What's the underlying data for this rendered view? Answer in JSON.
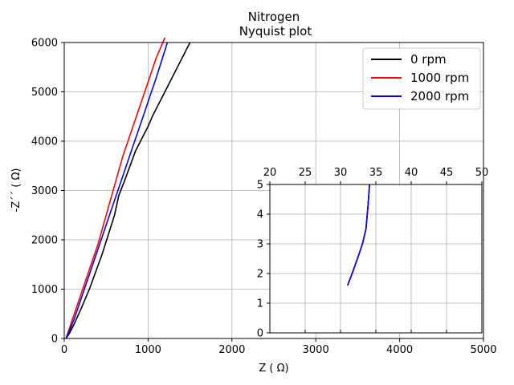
{
  "chart_data": [
    {
      "type": "line",
      "title": "Nitrogen",
      "subtitle": "Nyquist plot",
      "xlabel": "Z  ( Ω)",
      "ylabel": "-Z´´  ( Ω)",
      "xlim": [
        0,
        5000
      ],
      "ylim": [
        0,
        6000
      ],
      "xticks": [
        0,
        1000,
        2000,
        3000,
        4000,
        5000
      ],
      "yticks": [
        0,
        1000,
        2000,
        3000,
        4000,
        5000,
        6000
      ],
      "grid": true,
      "legend_position": "top-right",
      "series": [
        {
          "name": "0 rpm",
          "color": "#000000",
          "x": [
            20,
            60,
            120,
            200,
            300,
            450,
            600,
            650,
            720,
            850,
            1000,
            1050,
            1200,
            1350,
            1500
          ],
          "y": [
            0,
            100,
            300,
            600,
            1000,
            1700,
            2500,
            2900,
            3200,
            3800,
            4300,
            4500,
            5000,
            5500,
            6000
          ]
        },
        {
          "name": "1000 rpm",
          "color": "#ff0000",
          "x": [
            20,
            60,
            120,
            200,
            300,
            400,
            500,
            600,
            700,
            800,
            900,
            1000,
            1100,
            1200
          ],
          "y": [
            0,
            200,
            500,
            900,
            1400,
            1900,
            2500,
            3100,
            3700,
            4200,
            4700,
            5200,
            5700,
            6100
          ]
        },
        {
          "name": "2000 rpm",
          "color": "#0000ff",
          "x": [
            20,
            60,
            120,
            200,
            300,
            400,
            500,
            600,
            700,
            800,
            900,
            1000,
            1100,
            1230
          ],
          "y": [
            0,
            150,
            400,
            800,
            1300,
            1800,
            2300,
            2800,
            3300,
            3800,
            4300,
            4800,
            5300,
            6000
          ]
        }
      ]
    },
    {
      "type": "line",
      "inset": true,
      "xlim": [
        20,
        50
      ],
      "ylim": [
        0,
        5
      ],
      "xticks": [
        20,
        25,
        30,
        35,
        40,
        45,
        50
      ],
      "yticks": [
        0,
        1,
        2,
        3,
        4,
        5
      ],
      "grid": true,
      "series": [
        {
          "color": "#000000",
          "x": [
            31.0,
            31.4,
            31.8,
            32.4,
            33.1,
            33.6,
            33.9,
            34.1
          ],
          "y": [
            1.6,
            1.85,
            2.1,
            2.5,
            3.0,
            3.5,
            4.3,
            5.0
          ]
        },
        {
          "color": "#ff0000",
          "x": [
            31.0,
            31.4,
            31.8,
            32.4,
            33.1,
            33.6,
            33.9,
            34.1
          ],
          "y": [
            1.6,
            1.85,
            2.1,
            2.5,
            3.0,
            3.5,
            4.3,
            5.0
          ]
        },
        {
          "color": "#0000ff",
          "x": [
            31.0,
            31.4,
            31.8,
            32.4,
            33.1,
            33.6,
            33.9,
            34.1
          ],
          "y": [
            1.6,
            1.85,
            2.1,
            2.5,
            3.0,
            3.5,
            4.3,
            5.0
          ]
        }
      ]
    }
  ]
}
